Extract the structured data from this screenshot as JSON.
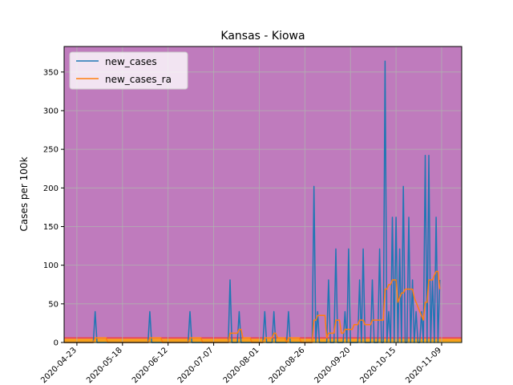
{
  "chart_data": {
    "type": "line",
    "title": "Kansas - Kiowa",
    "xlabel": "",
    "ylabel": "Cases per 100k",
    "x_ticks": [
      "2020-04-23",
      "2020-05-18",
      "2020-06-12",
      "2020-07-07",
      "2020-08-01",
      "2020-08-26",
      "2020-09-20",
      "2020-10-15",
      "2020-11-09"
    ],
    "y_ticks": [
      0,
      50,
      100,
      150,
      200,
      250,
      300,
      350
    ],
    "xlim": [
      "2020-04-16",
      "2020-11-20"
    ],
    "ylim": [
      0,
      383
    ],
    "grid": true,
    "legend_position": "top-left",
    "background_bands": [
      {
        "from": 0,
        "to": 1,
        "color": "#f2e33a"
      },
      {
        "from": 1,
        "to": 5,
        "color": "#f7a01a"
      },
      {
        "from": 5,
        "to": 7,
        "color": "#e43a50"
      },
      {
        "from": 7,
        "to": 383,
        "color": "#bf7bbd"
      }
    ],
    "series": [
      {
        "name": "new_cases",
        "color": "#1f77b4",
        "points": [
          [
            "2020-04-16",
            0
          ],
          [
            "2020-05-02",
            0
          ],
          [
            "2020-05-03",
            40
          ],
          [
            "2020-05-04",
            0
          ],
          [
            "2020-06-01",
            0
          ],
          [
            "2020-06-02",
            40
          ],
          [
            "2020-06-03",
            0
          ],
          [
            "2020-06-23",
            0
          ],
          [
            "2020-06-24",
            40
          ],
          [
            "2020-06-25",
            0
          ],
          [
            "2020-07-15",
            0
          ],
          [
            "2020-07-16",
            81
          ],
          [
            "2020-07-17",
            0
          ],
          [
            "2020-07-20",
            0
          ],
          [
            "2020-07-21",
            40
          ],
          [
            "2020-07-22",
            0
          ],
          [
            "2020-08-03",
            0
          ],
          [
            "2020-08-04",
            40
          ],
          [
            "2020-08-05",
            0
          ],
          [
            "2020-08-08",
            0
          ],
          [
            "2020-08-09",
            40
          ],
          [
            "2020-08-10",
            0
          ],
          [
            "2020-08-16",
            0
          ],
          [
            "2020-08-17",
            40
          ],
          [
            "2020-08-18",
            0
          ],
          [
            "2020-08-30",
            0
          ],
          [
            "2020-08-31",
            202
          ],
          [
            "2020-09-01",
            0
          ],
          [
            "2020-09-02",
            40
          ],
          [
            "2020-09-03",
            0
          ],
          [
            "2020-09-07",
            0
          ],
          [
            "2020-09-08",
            81
          ],
          [
            "2020-09-09",
            0
          ],
          [
            "2020-09-11",
            0
          ],
          [
            "2020-09-12",
            121
          ],
          [
            "2020-09-13",
            0
          ],
          [
            "2020-09-16",
            0
          ],
          [
            "2020-09-17",
            40
          ],
          [
            "2020-09-18",
            0
          ],
          [
            "2020-09-19",
            121
          ],
          [
            "2020-09-20",
            0
          ],
          [
            "2020-09-24",
            0
          ],
          [
            "2020-09-25",
            81
          ],
          [
            "2020-09-26",
            0
          ],
          [
            "2020-09-27",
            121
          ],
          [
            "2020-09-28",
            0
          ],
          [
            "2020-10-01",
            0
          ],
          [
            "2020-10-02",
            81
          ],
          [
            "2020-10-03",
            0
          ],
          [
            "2020-10-05",
            0
          ],
          [
            "2020-10-06",
            121
          ],
          [
            "2020-10-07",
            0
          ],
          [
            "2020-10-08",
            0
          ],
          [
            "2020-10-09",
            364
          ],
          [
            "2020-10-10",
            0
          ],
          [
            "2020-10-11",
            40
          ],
          [
            "2020-10-12",
            0
          ],
          [
            "2020-10-13",
            162
          ],
          [
            "2020-10-14",
            0
          ],
          [
            "2020-10-15",
            162
          ],
          [
            "2020-10-16",
            0
          ],
          [
            "2020-10-17",
            121
          ],
          [
            "2020-10-18",
            0
          ],
          [
            "2020-10-19",
            202
          ],
          [
            "2020-10-20",
            0
          ],
          [
            "2020-10-21",
            0
          ],
          [
            "2020-10-22",
            162
          ],
          [
            "2020-10-23",
            0
          ],
          [
            "2020-10-24",
            81
          ],
          [
            "2020-10-25",
            0
          ],
          [
            "2020-10-26",
            40
          ],
          [
            "2020-10-27",
            0
          ],
          [
            "2020-10-28",
            0
          ],
          [
            "2020-10-29",
            40
          ],
          [
            "2020-10-30",
            0
          ],
          [
            "2020-10-31",
            242
          ],
          [
            "2020-11-01",
            0
          ],
          [
            "2020-11-02",
            242
          ],
          [
            "2020-11-03",
            0
          ],
          [
            "2020-11-04",
            81
          ],
          [
            "2020-11-05",
            0
          ],
          [
            "2020-11-06",
            162
          ],
          [
            "2020-11-07",
            0
          ],
          [
            "2020-11-08",
            81
          ]
        ]
      },
      {
        "name": "new_cases_ra",
        "color": "#ff7f0e",
        "points": [
          [
            "2020-04-16",
            0
          ],
          [
            "2020-05-02",
            0
          ],
          [
            "2020-05-03",
            6
          ],
          [
            "2020-05-09",
            6
          ],
          [
            "2020-05-10",
            0
          ],
          [
            "2020-06-01",
            0
          ],
          [
            "2020-06-02",
            6
          ],
          [
            "2020-06-08",
            6
          ],
          [
            "2020-06-09",
            0
          ],
          [
            "2020-06-23",
            0
          ],
          [
            "2020-06-24",
            6
          ],
          [
            "2020-06-30",
            6
          ],
          [
            "2020-07-01",
            0
          ],
          [
            "2020-07-15",
            0
          ],
          [
            "2020-07-16",
            12
          ],
          [
            "2020-07-20",
            12
          ],
          [
            "2020-07-21",
            17
          ],
          [
            "2020-07-22",
            17
          ],
          [
            "2020-07-23",
            6
          ],
          [
            "2020-07-27",
            6
          ],
          [
            "2020-07-28",
            0
          ],
          [
            "2020-08-03",
            0
          ],
          [
            "2020-08-04",
            6
          ],
          [
            "2020-08-08",
            6
          ],
          [
            "2020-08-09",
            12
          ],
          [
            "2020-08-10",
            12
          ],
          [
            "2020-08-11",
            6
          ],
          [
            "2020-08-15",
            6
          ],
          [
            "2020-08-16",
            0
          ],
          [
            "2020-08-17",
            6
          ],
          [
            "2020-08-23",
            6
          ],
          [
            "2020-08-24",
            0
          ],
          [
            "2020-08-30",
            0
          ],
          [
            "2020-08-31",
            29
          ],
          [
            "2020-09-01",
            29
          ],
          [
            "2020-09-02",
            35
          ],
          [
            "2020-09-06",
            35
          ],
          [
            "2020-09-07",
            6
          ],
          [
            "2020-09-08",
            12
          ],
          [
            "2020-09-11",
            12
          ],
          [
            "2020-09-12",
            29
          ],
          [
            "2020-09-14",
            29
          ],
          [
            "2020-09-15",
            12
          ],
          [
            "2020-09-16",
            12
          ],
          [
            "2020-09-17",
            17
          ],
          [
            "2020-09-21",
            17
          ],
          [
            "2020-09-22",
            23
          ],
          [
            "2020-09-24",
            23
          ],
          [
            "2020-09-25",
            29
          ],
          [
            "2020-09-27",
            29
          ],
          [
            "2020-09-28",
            23
          ],
          [
            "2020-10-01",
            23
          ],
          [
            "2020-10-02",
            29
          ],
          [
            "2020-10-04",
            29
          ],
          [
            "2020-10-05",
            29
          ],
          [
            "2020-10-06",
            29
          ],
          [
            "2020-10-07",
            29
          ],
          [
            "2020-10-08",
            29
          ],
          [
            "2020-10-09",
            69
          ],
          [
            "2020-10-10",
            69
          ],
          [
            "2020-10-11",
            75
          ],
          [
            "2020-10-12",
            75
          ],
          [
            "2020-10-13",
            81
          ],
          [
            "2020-10-15",
            81
          ],
          [
            "2020-10-16",
            52
          ],
          [
            "2020-10-17",
            58
          ],
          [
            "2020-10-18",
            64
          ],
          [
            "2020-10-19",
            64
          ],
          [
            "2020-10-20",
            69
          ],
          [
            "2020-10-24",
            69
          ],
          [
            "2020-10-25",
            58
          ],
          [
            "2020-10-26",
            52
          ],
          [
            "2020-10-28",
            40
          ],
          [
            "2020-10-30",
            29
          ],
          [
            "2020-10-31",
            52
          ],
          [
            "2020-11-01",
            52
          ],
          [
            "2020-11-02",
            81
          ],
          [
            "2020-11-04",
            81
          ],
          [
            "2020-11-05",
            87
          ],
          [
            "2020-11-06",
            92
          ],
          [
            "2020-11-07",
            92
          ],
          [
            "2020-11-08",
            69
          ]
        ]
      }
    ]
  }
}
